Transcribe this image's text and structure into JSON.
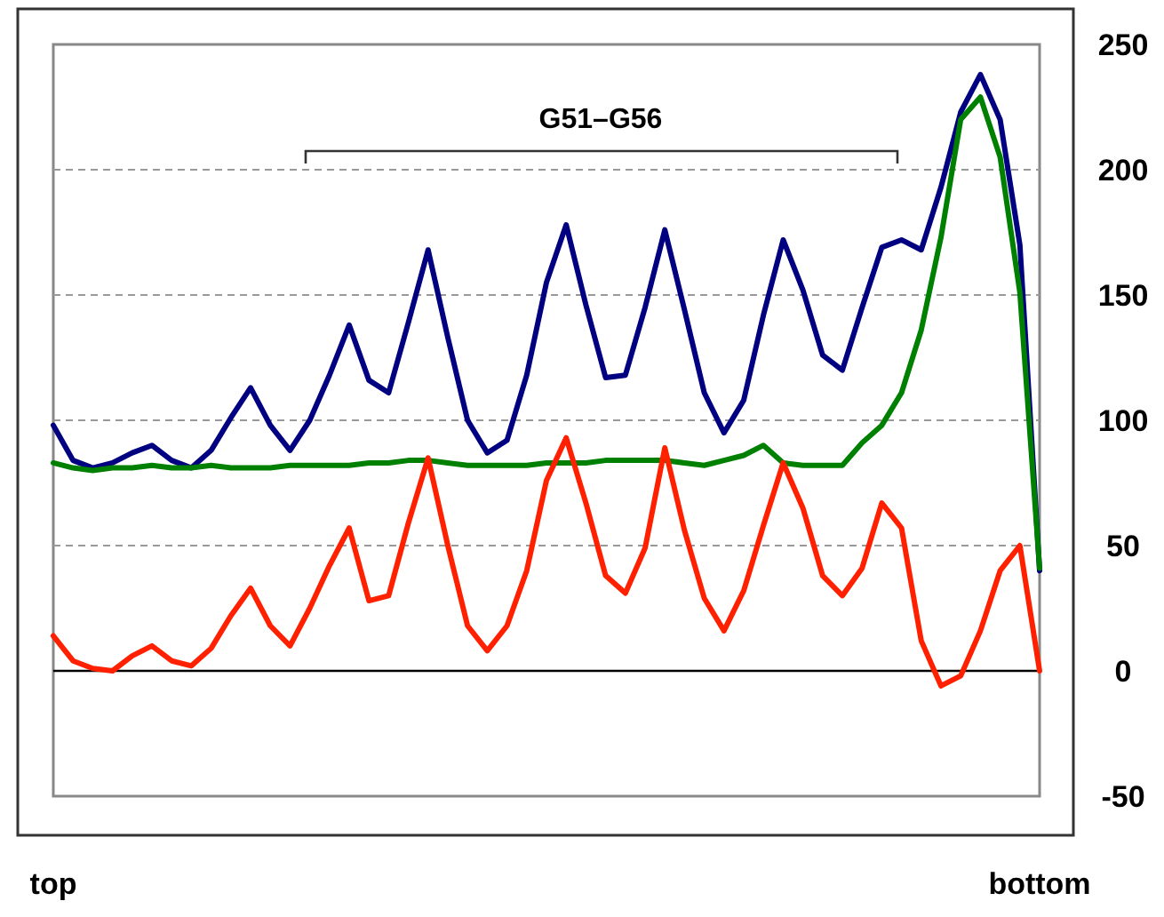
{
  "chart_data": {
    "type": "line",
    "categories": [
      "top",
      null,
      null,
      null,
      null,
      null,
      null,
      null,
      null,
      null,
      null,
      null,
      null,
      null,
      null,
      null,
      null,
      null,
      null,
      null,
      null,
      null,
      null,
      null,
      null,
      null,
      null,
      null,
      null,
      null,
      null,
      null,
      null,
      null,
      null,
      null,
      null,
      null,
      null,
      null,
      null,
      null,
      null,
      null,
      null,
      null,
      null,
      null,
      null,
      null,
      "bottom"
    ],
    "ylim": [
      -50,
      250
    ],
    "yticks": [
      -50,
      0,
      50,
      100,
      150,
      200,
      250
    ],
    "grid": "y",
    "line_style": "solid",
    "marker": "none",
    "annotations": [
      "G51–G56"
    ],
    "ref_lines": [
      {
        "axis": "y",
        "value": 0,
        "color": "#000000"
      }
    ],
    "series": [
      {
        "color": "#000080",
        "values": [
          98,
          84,
          81,
          83,
          87,
          90,
          84,
          81,
          88,
          101,
          113,
          98,
          88,
          100,
          118,
          138,
          116,
          111,
          139,
          168,
          133,
          100,
          87,
          92,
          118,
          155,
          178,
          146,
          117,
          118,
          145,
          176,
          144,
          111,
          95,
          108,
          142,
          172,
          152,
          126,
          120,
          145,
          169,
          172,
          168,
          193,
          223,
          238,
          220,
          170,
          40
        ]
      },
      {
        "color": "#008000",
        "values": [
          83,
          81,
          80,
          81,
          81,
          82,
          81,
          81,
          82,
          81,
          81,
          81,
          82,
          82,
          82,
          82,
          83,
          83,
          84,
          84,
          83,
          82,
          82,
          82,
          82,
          83,
          83,
          83,
          84,
          84,
          84,
          84,
          83,
          82,
          84,
          86,
          90,
          83,
          82,
          82,
          82,
          91,
          98,
          111,
          136,
          173,
          220,
          229,
          205,
          151,
          41
        ]
      },
      {
        "color": "#ff2000",
        "values": [
          14,
          4,
          1,
          0,
          6,
          10,
          4,
          2,
          9,
          22,
          33,
          18,
          10,
          25,
          42,
          57,
          28,
          30,
          59,
          85,
          50,
          18,
          8,
          18,
          40,
          76,
          93,
          67,
          38,
          31,
          49,
          89,
          56,
          29,
          16,
          32,
          58,
          83,
          65,
          38,
          30,
          41,
          67,
          57,
          12,
          -6,
          -2,
          16,
          40,
          50,
          0
        ]
      }
    ]
  }
}
